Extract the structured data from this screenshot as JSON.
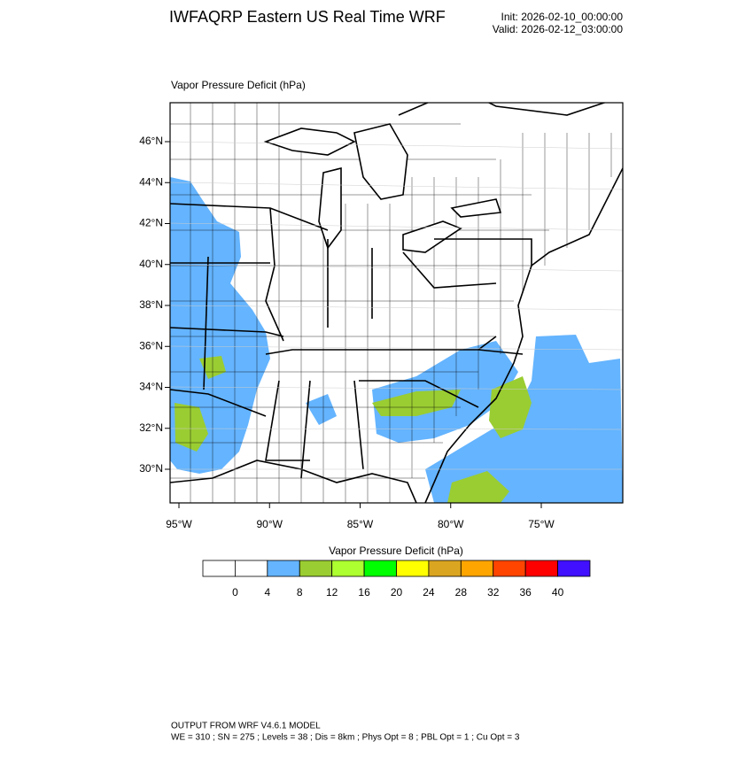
{
  "header": {
    "title": "IWFAQRP Eastern US Real Time WRF",
    "init": "Init: 2026-02-10_00:00:00",
    "valid": "Valid: 2026-02-12_03:00:00"
  },
  "map": {
    "title": "Vapor Pressure Deficit   (hPa)",
    "lat_labels": [
      "46°N",
      "44°N",
      "42°N",
      "40°N",
      "38°N",
      "36°N",
      "34°N",
      "32°N",
      "30°N"
    ],
    "lon_labels": [
      "95°W",
      "90°W",
      "85°W",
      "80°W",
      "75°W"
    ]
  },
  "colorbar": {
    "title": "Vapor Pressure Deficit  (hPa)",
    "colors": [
      "#ffffff",
      "#ffffff",
      "#64b4ff",
      "#9acd32",
      "#adff2f",
      "#00ff00",
      "#ffff00",
      "#daa520",
      "#ffa500",
      "#ff4500",
      "#ff0000",
      "#4010ff"
    ],
    "labels": [
      "0",
      "4",
      "8",
      "12",
      "16",
      "20",
      "24",
      "28",
      "32",
      "36",
      "40"
    ]
  },
  "footer": {
    "line1": "OUTPUT FROM WRF V4.6.1 MODEL",
    "line2": "WE = 310 ; SN = 275 ; Levels = 38 ; Dis = 8km ; Phys Opt = 8 ; PBL Opt = 1 ; Cu Opt = 3"
  }
}
